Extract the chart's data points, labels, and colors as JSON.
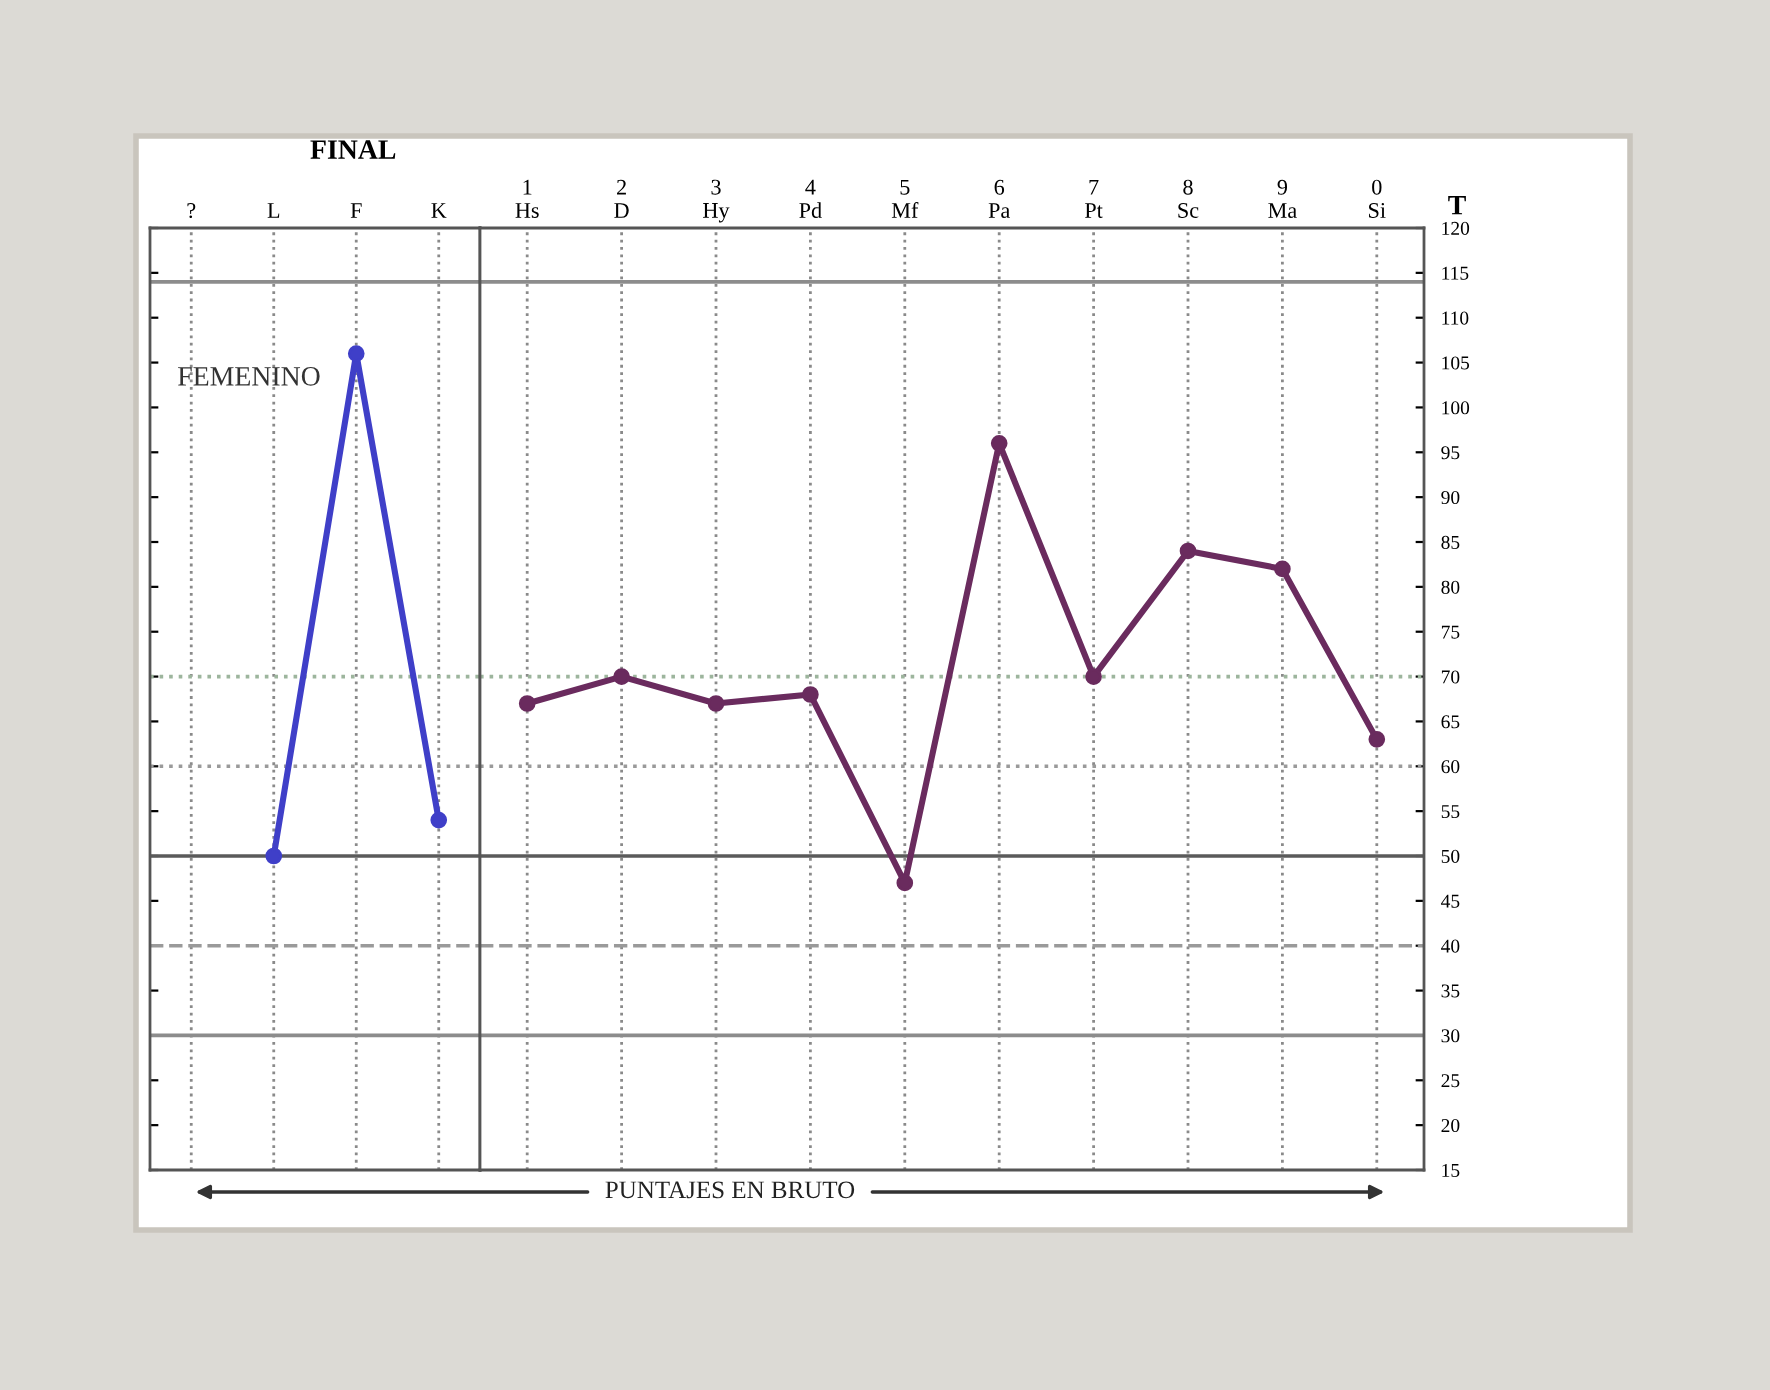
{
  "chart_data": [
    {
      "type": "line",
      "title": "FINAL",
      "categories": [
        "?",
        "L",
        "F",
        "K"
      ],
      "series": [
        {
          "color": "#3f3fc8",
          "values": [
            null,
            50,
            106,
            54
          ]
        }
      ],
      "ylim": [
        15,
        120
      ],
      "yticks": [
        15,
        20,
        25,
        30,
        35,
        40,
        45,
        50,
        55,
        60,
        65,
        70,
        75,
        80,
        85,
        90,
        95,
        100,
        105,
        110,
        115,
        120
      ],
      "tick_labels": "x",
      "grid": "x",
      "marker": "circle",
      "line_style": "solid",
      "ref_lines": [
        {
          "axis": "y",
          "value": 114,
          "color": "#8c8c8c",
          "line_style": "solid"
        },
        {
          "axis": "y",
          "value": 70,
          "color": "#9db59d",
          "line_style": "dotted"
        },
        {
          "axis": "y",
          "value": 60,
          "color": "#9a9a9a",
          "line_style": "dotted"
        },
        {
          "axis": "y",
          "value": 50,
          "color": "#5a5a5a",
          "line_style": "solid"
        },
        {
          "axis": "y",
          "value": 40,
          "color": "#9a9a9a",
          "line_style": "dashed"
        },
        {
          "axis": "y",
          "value": 30,
          "color": "#8c8c8c",
          "line_style": "solid"
        }
      ],
      "annotations": [
        "FEMENINO"
      ]
    },
    {
      "type": "line",
      "categories": [
        "1\nHs",
        "2\nD",
        "3\nHy",
        "4\nPd",
        "5\nMf",
        "6\nPa",
        "7\nPt",
        "8\nSc",
        "9\nMa",
        "0\nSi"
      ],
      "series": [
        {
          "color": "#6a2b5e",
          "values": [
            67,
            70,
            67,
            68,
            47,
            96,
            70,
            84,
            82,
            63
          ]
        }
      ],
      "ylabel": "T",
      "ylim": [
        15,
        120
      ],
      "yticks": [
        15,
        20,
        25,
        30,
        35,
        40,
        45,
        50,
        55,
        60,
        65,
        70,
        75,
        80,
        85,
        90,
        95,
        100,
        105,
        110,
        115,
        120
      ],
      "grid": "x",
      "marker": "circle",
      "line_style": "solid",
      "ref_lines": [
        {
          "axis": "y",
          "value": 114,
          "color": "#8c8c8c",
          "line_style": "solid"
        },
        {
          "axis": "y",
          "value": 70,
          "color": "#9db59d",
          "line_style": "dotted"
        },
        {
          "axis": "y",
          "value": 60,
          "color": "#9a9a9a",
          "line_style": "dotted"
        },
        {
          "axis": "y",
          "value": 50,
          "color": "#5a5a5a",
          "line_style": "solid"
        },
        {
          "axis": "y",
          "value": 40,
          "color": "#9a9a9a",
          "line_style": "dashed"
        },
        {
          "axis": "y",
          "value": 30,
          "color": "#8c8c8c",
          "line_style": "solid"
        }
      ],
      "annotations": [
        "PUNTAJES EN BRUTO"
      ]
    }
  ]
}
